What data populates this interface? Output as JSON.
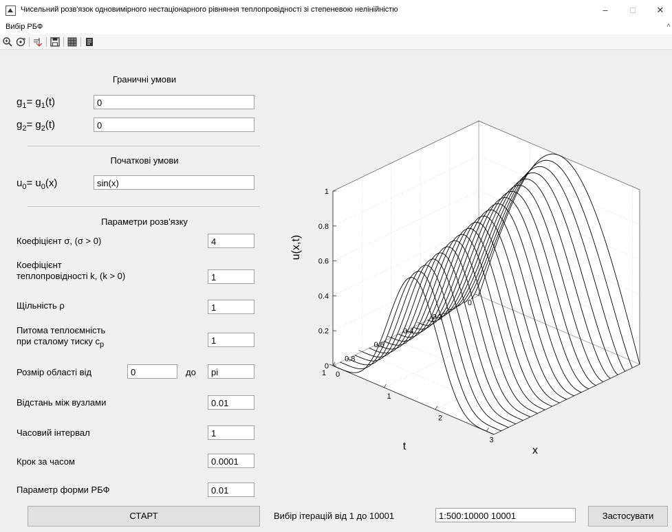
{
  "window": {
    "title": "Чисельний розв'язок одновимірного нестаціонарного рівняння теплопровідності зі степеневою нелінійністю",
    "minimize": "–",
    "maximize": "□",
    "close": "✕"
  },
  "menu": {
    "item": "Вибір РБФ",
    "caret": "˄"
  },
  "boundary": {
    "heading": "Граничні умови",
    "g1_label": "g",
    "g1_sub": "1",
    "g1_mid": "= g",
    "g1_sub2": "1",
    "g1_tail": "(t)",
    "g1_value": "0",
    "g2_label": "g",
    "g2_sub": "2",
    "g2_mid": "= g",
    "g2_sub2": "2",
    "g2_tail": "(t)",
    "g2_value": "0"
  },
  "initial": {
    "heading": "Початкові умови",
    "u0_label": "u",
    "u0_sub": "0",
    "u0_mid": "= u",
    "u0_sub2": "0",
    "u0_tail": "(x)",
    "u0_value": "sin(x)"
  },
  "params": {
    "heading": "Параметри розв'язку",
    "sigma_label": "Коефіцієнт σ, (σ > 0)",
    "sigma_value": "4",
    "k_label_1": "Коефіцієнт",
    "k_label_2": "теплопровідності k, (k > 0)",
    "k_value": "1",
    "rho_label": "Щільність ρ",
    "rho_value": "1",
    "cp_label_1": "Питома теплоємність",
    "cp_label_2": "при сталому тиску c",
    "cp_sub": "p",
    "cp_value": "1",
    "domain_label": "Розмір області від",
    "domain_from": "0",
    "domain_to_label": "до",
    "domain_to": "pi",
    "step_x_label": "Відстань між вузлами",
    "step_x_value": "0.01",
    "time_label": "Часовий інтервал",
    "time_value": "1",
    "dt_label": "Крок за часом",
    "dt_value": "0.0001",
    "shape_label": "Параметр форми РБФ",
    "shape_value": "0.01"
  },
  "bottom": {
    "start": "СТАРТ",
    "iter_label": "Вибір ітерацій від 1 до 10001",
    "iter_value": "1:500:10000 10001",
    "apply": "Застосувати"
  },
  "chart_data": {
    "type": "line",
    "title": "",
    "xlabel": "x",
    "ylabel": "t",
    "zlabel": "u(x,t)",
    "xlim": [
      0,
      3.14159
    ],
    "ylim": [
      0,
      1
    ],
    "zlim": [
      0,
      1
    ],
    "x_ticks": [
      "0",
      "1",
      "2",
      "3"
    ],
    "y_ticks": [
      "0",
      "0.2",
      "0.4",
      "0.6",
      "0.8",
      "1"
    ],
    "z_ticks": [
      "0",
      "0.2",
      "0.4",
      "0.6",
      "0.8",
      "1"
    ],
    "grid": true,
    "line_color": "#000000",
    "series_count": 21,
    "t_values": [
      0,
      0.05,
      0.1,
      0.15,
      0.2,
      0.25,
      0.3,
      0.35,
      0.4,
      0.45,
      0.5,
      0.55,
      0.6,
      0.65,
      0.7,
      0.75,
      0.8,
      0.85,
      0.9,
      0.95,
      1.0
    ],
    "u_initial": "sin(x)"
  }
}
